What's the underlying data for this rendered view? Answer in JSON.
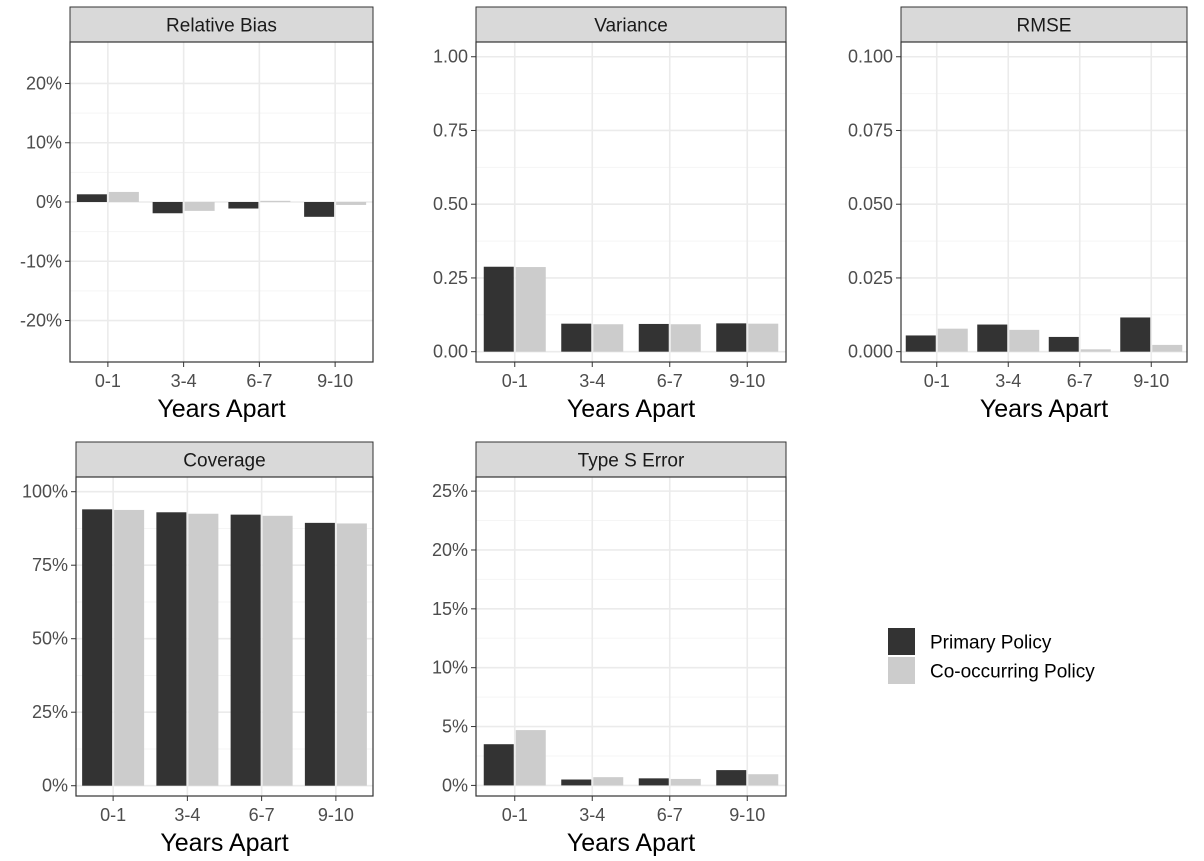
{
  "colors": {
    "primary": "#333333",
    "co_occurring": "#cccccc",
    "strip_fill": "#d9d9d9",
    "grid_major": "#ebebeb",
    "grid_minor": "#f5f5f5",
    "panel_border": "#333333"
  },
  "legend": {
    "placement": "bottom-right",
    "entries": [
      {
        "label": "Primary Policy",
        "color": "#333333"
      },
      {
        "label": "Co-occurring Policy",
        "color": "#cccccc"
      }
    ]
  },
  "chart_data": [
    {
      "type": "bar",
      "title": "Relative Bias",
      "xlabel": "Years Apart",
      "ylabel": "",
      "categories": [
        "0-1",
        "3-4",
        "6-7",
        "9-10"
      ],
      "series": [
        {
          "name": "Primary Policy",
          "values": [
            0.013,
            -0.019,
            -0.011,
            -0.025
          ]
        },
        {
          "name": "Co-occurring Policy",
          "values": [
            0.017,
            -0.015,
            0.002,
            -0.005
          ]
        }
      ],
      "ylim": [
        -0.27,
        0.27
      ],
      "yticks": [
        -0.2,
        -0.1,
        0,
        0.1,
        0.2
      ],
      "ytick_labels": [
        "-20%",
        "-10%",
        "0%",
        "10%",
        "20%"
      ],
      "grid": true
    },
    {
      "type": "bar",
      "title": "Variance",
      "xlabel": "Years Apart",
      "ylabel": "",
      "categories": [
        "0-1",
        "3-4",
        "6-7",
        "9-10"
      ],
      "series": [
        {
          "name": "Primary Policy",
          "values": [
            0.288,
            0.095,
            0.094,
            0.096
          ]
        },
        {
          "name": "Co-occurring Policy",
          "values": [
            0.287,
            0.093,
            0.093,
            0.095
          ]
        }
      ],
      "ylim": [
        -0.035,
        1.05
      ],
      "yticks": [
        0,
        0.25,
        0.5,
        0.75,
        1
      ],
      "ytick_labels": [
        "0.00",
        "0.25",
        "0.50",
        "0.75",
        "1.00"
      ],
      "grid": true
    },
    {
      "type": "bar",
      "title": "RMSE",
      "xlabel": "Years Apart",
      "ylabel": "",
      "categories": [
        "0-1",
        "3-4",
        "6-7",
        "9-10"
      ],
      "series": [
        {
          "name": "Primary Policy",
          "values": [
            0.0055,
            0.0092,
            0.005,
            0.0116
          ]
        },
        {
          "name": "Co-occurring Policy",
          "values": [
            0.0078,
            0.0074,
            0.0008,
            0.0023
          ]
        }
      ],
      "ylim": [
        -0.0035,
        0.105
      ],
      "yticks": [
        0,
        0.025,
        0.05,
        0.075,
        0.1
      ],
      "ytick_labels": [
        "0.000",
        "0.025",
        "0.050",
        "0.075",
        "0.100"
      ],
      "grid": true
    },
    {
      "type": "bar",
      "title": "Coverage",
      "xlabel": "Years Apart",
      "ylabel": "",
      "categories": [
        "0-1",
        "3-4",
        "6-7",
        "9-10"
      ],
      "series": [
        {
          "name": "Primary Policy",
          "values": [
            0.94,
            0.93,
            0.922,
            0.894
          ]
        },
        {
          "name": "Co-occurring Policy",
          "values": [
            0.938,
            0.925,
            0.918,
            0.892
          ]
        }
      ],
      "ylim": [
        -0.035,
        1.05
      ],
      "yticks": [
        0,
        0.25,
        0.5,
        0.75,
        1
      ],
      "ytick_labels": [
        "0%",
        "25%",
        "50%",
        "75%",
        "100%"
      ],
      "grid": true
    },
    {
      "type": "bar",
      "title": "Type S Error",
      "xlabel": "Years Apart",
      "ylabel": "",
      "categories": [
        "0-1",
        "3-4",
        "6-7",
        "9-10"
      ],
      "series": [
        {
          "name": "Primary Policy",
          "values": [
            0.035,
            0.005,
            0.006,
            0.013
          ]
        },
        {
          "name": "Co-occurring Policy",
          "values": [
            0.047,
            0.007,
            0.0055,
            0.0095
          ]
        }
      ],
      "ylim": [
        -0.009,
        0.262
      ],
      "yticks": [
        0,
        0.05,
        0.1,
        0.15,
        0.2,
        0.25
      ],
      "ytick_labels": [
        "0%",
        "5%",
        "10%",
        "15%",
        "20%",
        "25%"
      ],
      "grid": true
    }
  ]
}
